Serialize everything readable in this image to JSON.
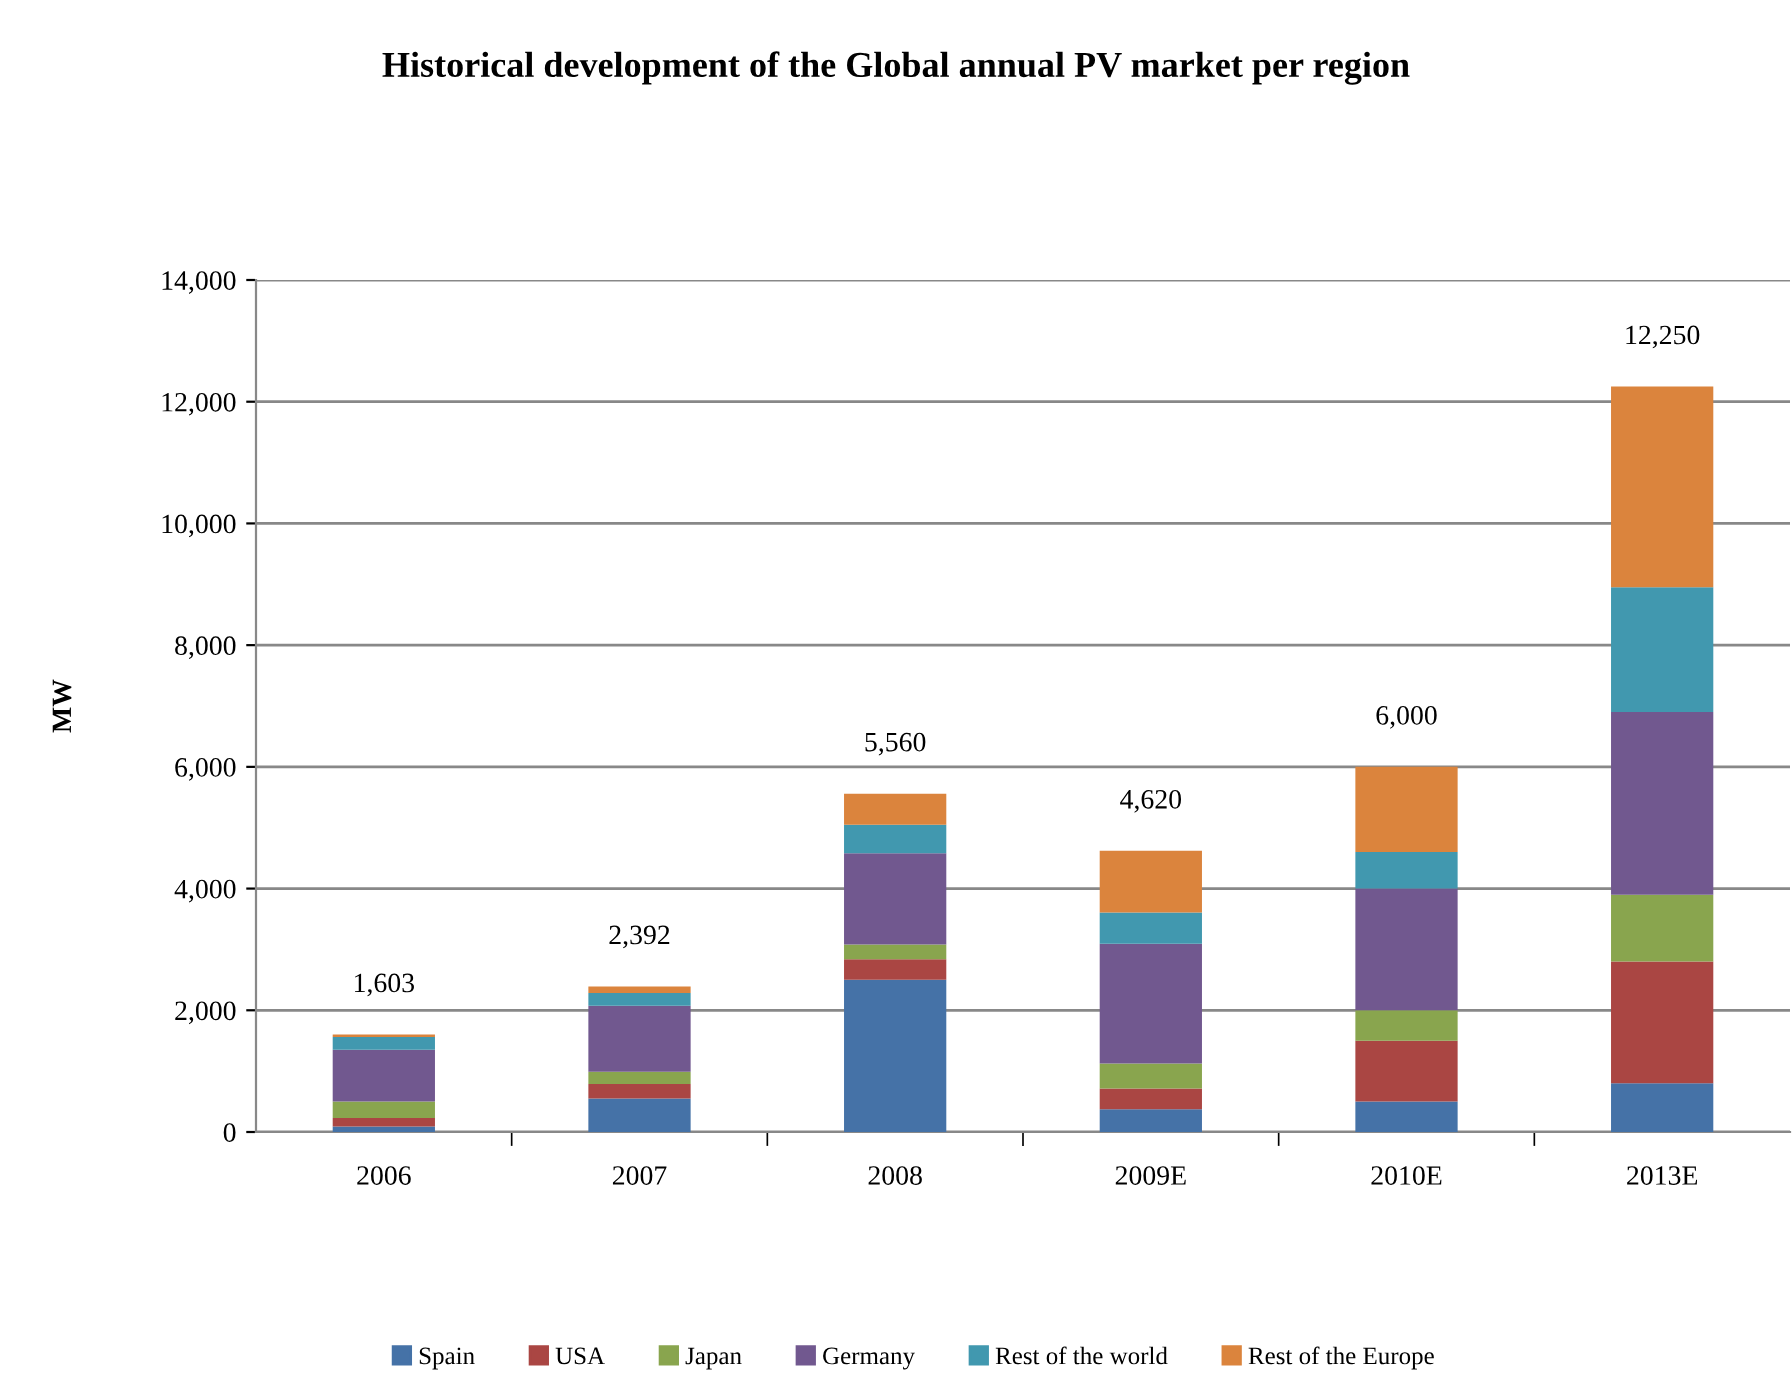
{
  "chart_data": {
    "type": "bar",
    "stacked": true,
    "title": "Historical development of the Global annual PV market per region",
    "ylabel": "MW",
    "categories": [
      "2006",
      "2007",
      "2008",
      "2009E",
      "2010E",
      "2013E"
    ],
    "series": [
      {
        "name": "Spain",
        "color": "#4572a7",
        "values": [
          90,
          550,
          2500,
          375,
          500,
          800
        ]
      },
      {
        "name": "USA",
        "color": "#aa4643",
        "values": [
          140,
          240,
          340,
          340,
          1000,
          2000
        ]
      },
      {
        "name": "Japan",
        "color": "#89a54e",
        "values": [
          270,
          200,
          240,
          410,
          500,
          1100
        ]
      },
      {
        "name": "Germany",
        "color": "#71588f",
        "values": [
          850,
          1083,
          1500,
          1970,
          2000,
          3000
        ]
      },
      {
        "name": "Rest of the world",
        "color": "#4198af",
        "values": [
          210,
          209,
          470,
          510,
          600,
          2050
        ]
      },
      {
        "name": "Rest of the Europe",
        "color": "#db843d",
        "values": [
          43,
          110,
          510,
          1015,
          1400,
          3300
        ]
      }
    ],
    "totals": [
      "1,603",
      "2,392",
      "5,560",
      "4,620",
      "6,000",
      "12,250"
    ],
    "ylim": [
      0,
      14000
    ],
    "yticks": [
      {
        "value": 0,
        "label": "0"
      },
      {
        "value": 2000,
        "label": "2,000"
      },
      {
        "value": 4000,
        "label": "4,000"
      },
      {
        "value": 6000,
        "label": "6,000"
      },
      {
        "value": 8000,
        "label": "8,000"
      },
      {
        "value": 10000,
        "label": "10,000"
      },
      {
        "value": 12000,
        "label": "12,000"
      },
      {
        "value": 14000,
        "label": "14,000"
      }
    ],
    "grid": "y",
    "legend": "bottom"
  }
}
